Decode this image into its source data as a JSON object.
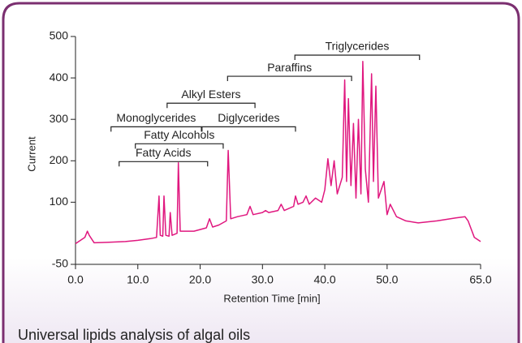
{
  "chart_data": {
    "type": "line",
    "caption": "Universal lipids analysis of algal oils",
    "x_label": "Retention Time [min]",
    "y_label": "Current",
    "xlim": [
      0,
      65
    ],
    "ylim": [
      -50,
      500
    ],
    "xticks": [
      {
        "value": 0,
        "label": "0.0"
      },
      {
        "value": 10,
        "label": "10.0"
      },
      {
        "value": 20,
        "label": "20.0"
      },
      {
        "value": 30,
        "label": "30.0"
      },
      {
        "value": 40,
        "label": "40.0"
      },
      {
        "value": 50,
        "label": "50.0"
      },
      {
        "value": 65,
        "label": "65.0"
      }
    ],
    "yticks": [
      -50,
      100,
      200,
      300,
      400,
      500
    ],
    "color": "#e0177f",
    "x": [
      0,
      1.5,
      1.9,
      2.2,
      3,
      5,
      8,
      10,
      12,
      13,
      13.4,
      13.6,
      14,
      14.2,
      14.5,
      15,
      15.2,
      15.5,
      16.3,
      16.5,
      16.8,
      17.5,
      19,
      21,
      21.5,
      22,
      23,
      24.2,
      24.5,
      24.9,
      26,
      27.5,
      28,
      28.5,
      30,
      30.5,
      31,
      32.5,
      33,
      33.5,
      35,
      35.3,
      35.7,
      36.5,
      37,
      37.5,
      38.5,
      39.5,
      40,
      40.5,
      41,
      41.5,
      42,
      42.8,
      43.2,
      43.5,
      43.8,
      44.2,
      44.6,
      45,
      45.4,
      45.8,
      46.1,
      46.5,
      47,
      47.5,
      47.8,
      48.2,
      48.6,
      49.5,
      50,
      50.5,
      51.5,
      53,
      55,
      58,
      61,
      62.5,
      63,
      64,
      65
    ],
    "values": [
      0,
      15,
      30,
      20,
      2,
      3,
      5,
      8,
      12,
      15,
      115,
      20,
      18,
      115,
      20,
      18,
      75,
      20,
      25,
      195,
      30,
      30,
      30,
      38,
      60,
      40,
      45,
      55,
      225,
      60,
      65,
      70,
      90,
      70,
      75,
      80,
      75,
      80,
      95,
      80,
      90,
      115,
      95,
      100,
      115,
      95,
      110,
      100,
      130,
      205,
      140,
      200,
      120,
      160,
      395,
      150,
      350,
      140,
      290,
      110,
      300,
      120,
      440,
      180,
      100,
      410,
      150,
      380,
      110,
      150,
      70,
      95,
      65,
      55,
      50,
      55,
      62,
      65,
      55,
      15,
      5
    ],
    "annotations": [
      {
        "text": "Triglycerides",
        "x": [
          35.2,
          55.2
        ],
        "y": 455
      },
      {
        "text": "Paraffins",
        "x": [
          24.4,
          44.3
        ],
        "y": 404
      },
      {
        "text": "Alkyl Esters",
        "x": [
          14.7,
          28.8
        ],
        "y": 339
      },
      {
        "text": "Monoglycerides",
        "x": [
          5.7,
          20.2
        ],
        "y": 282
      },
      {
        "text": "Diglycerides",
        "x": [
          20.3,
          35.3
        ],
        "y": 282
      },
      {
        "text": "Fatty Alcohols",
        "x": [
          9.6,
          23.7
        ],
        "y": 241
      },
      {
        "text": "Fatty Acids",
        "x": [
          7.0,
          21.2
        ],
        "y": 198
      }
    ]
  }
}
